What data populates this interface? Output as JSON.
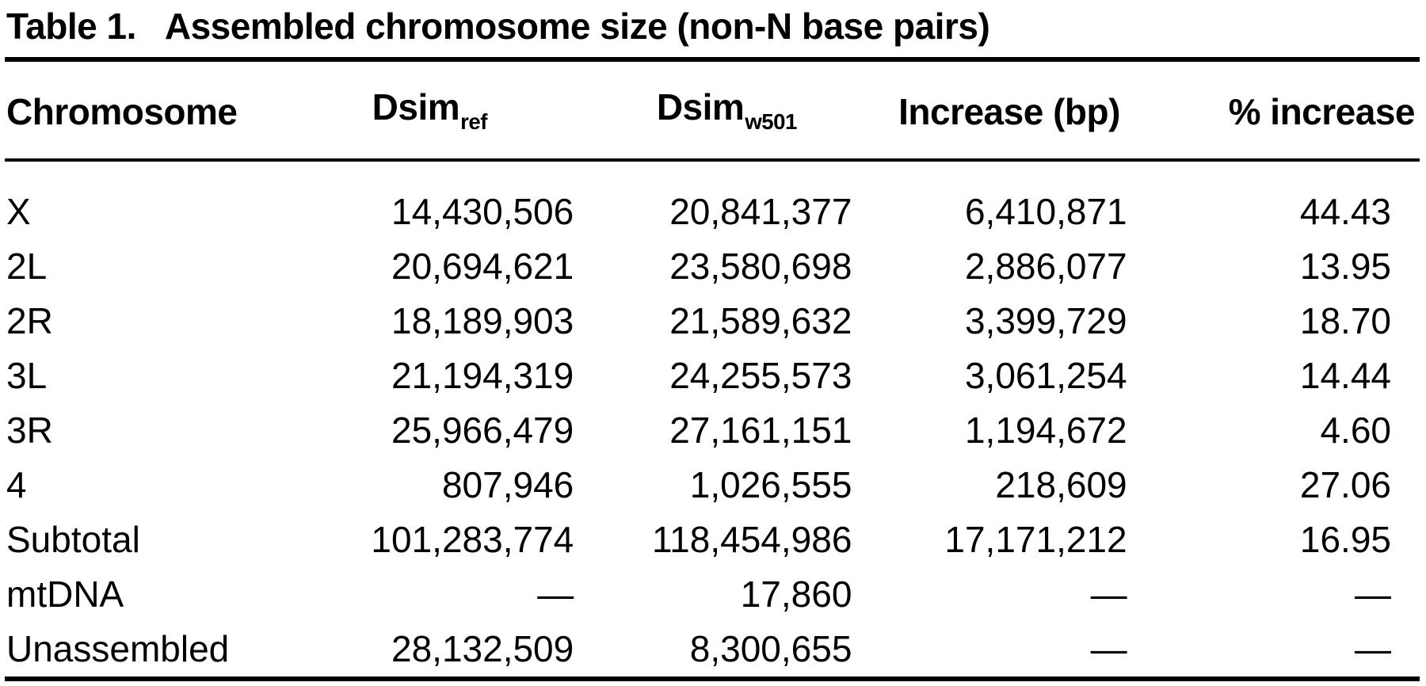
{
  "table": {
    "label": "Table 1.",
    "title": "Assembled chromosome size (non-N base pairs)",
    "columns": [
      {
        "label": "Chromosome"
      },
      {
        "main": "Dsim",
        "sub": "ref"
      },
      {
        "main": "Dsim",
        "sub": "w501"
      },
      {
        "label": "Increase (bp)"
      },
      {
        "label": "% increase"
      }
    ],
    "rows": [
      [
        "X",
        "14,430,506",
        "20,841,377",
        "6,410,871",
        "44.43"
      ],
      [
        "2L",
        "20,694,621",
        "23,580,698",
        "2,886,077",
        "13.95"
      ],
      [
        "2R",
        "18,189,903",
        "21,589,632",
        "3,399,729",
        "18.70"
      ],
      [
        "3L",
        "21,194,319",
        "24,255,573",
        "3,061,254",
        "14.44"
      ],
      [
        "3R",
        "25,966,479",
        "27,161,151",
        "1,194,672",
        "4.60"
      ],
      [
        "4",
        "807,946",
        "1,026,555",
        "218,609",
        "27.06"
      ],
      [
        "Subtotal",
        "101,283,774",
        "118,454,986",
        "17,171,212",
        "16.95"
      ],
      [
        "mtDNA",
        "—",
        "17,860",
        "—",
        "—"
      ],
      [
        "Unassembled",
        "28,132,509",
        "8,300,655",
        "—",
        "—"
      ]
    ]
  }
}
